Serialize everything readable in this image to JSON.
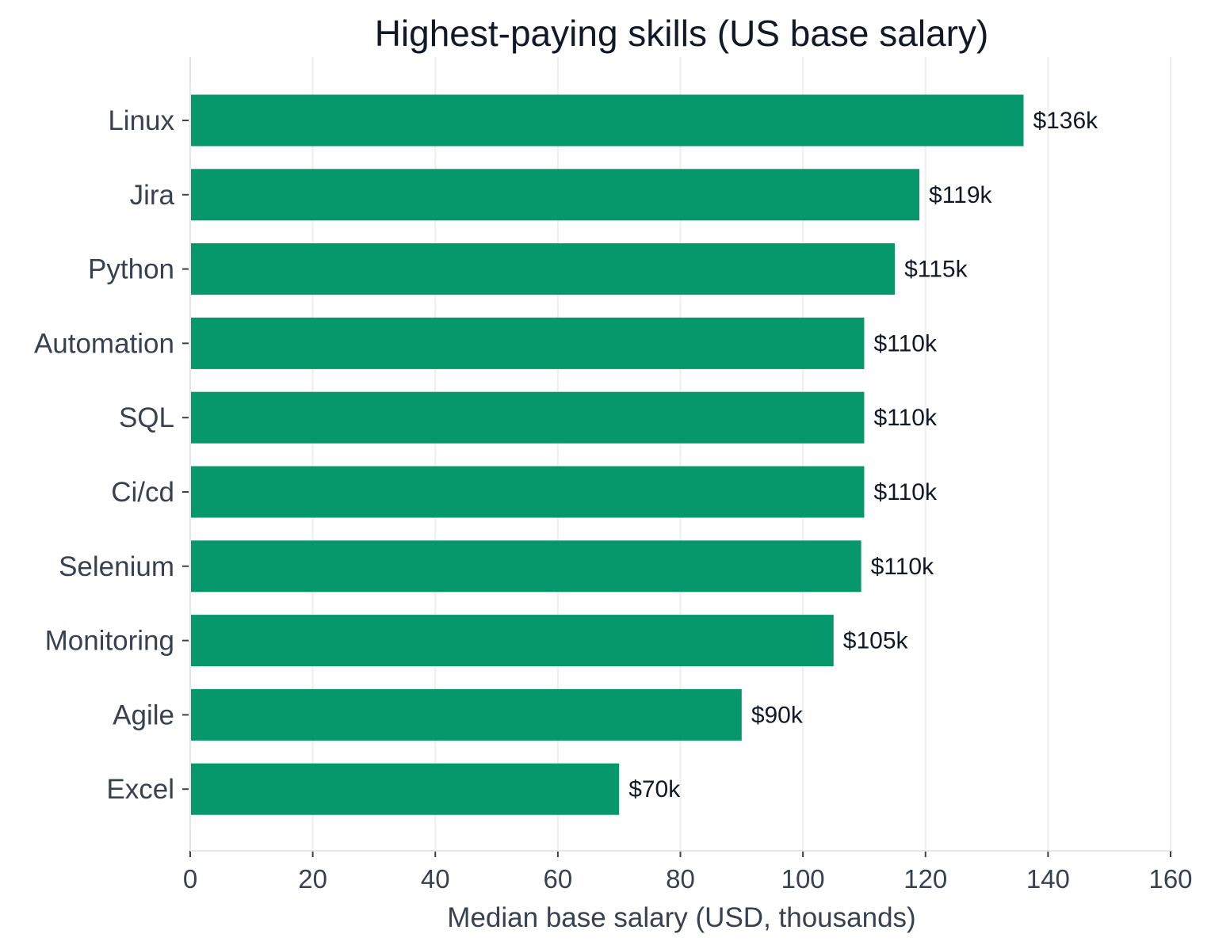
{
  "chart_data": {
    "type": "bar",
    "orientation": "horizontal",
    "title": "Highest-paying skills (US base salary)",
    "xlabel": "Median base salary (USD, thousands)",
    "ylabel": "",
    "categories": [
      "Linux",
      "Jira",
      "Python",
      "Automation",
      "SQL",
      "Ci/cd",
      "Selenium",
      "Monitoring",
      "Agile",
      "Excel"
    ],
    "values": [
      136,
      119,
      115,
      110,
      110,
      110,
      109.5,
      105,
      90,
      70
    ],
    "data_labels": [
      "$136k",
      "$119k",
      "$115k",
      "$110k",
      "$110k",
      "$110k",
      "$110k",
      "$105k",
      "$90k",
      "$70k"
    ],
    "xlim": [
      0,
      160
    ],
    "xticks": [
      0,
      20,
      40,
      60,
      80,
      100,
      120,
      140,
      160
    ],
    "grid": "vertical",
    "legend": "none",
    "bar_color": "#06976a",
    "grid_color": "#eeeeee",
    "axis_color": "#e5e7eb"
  }
}
